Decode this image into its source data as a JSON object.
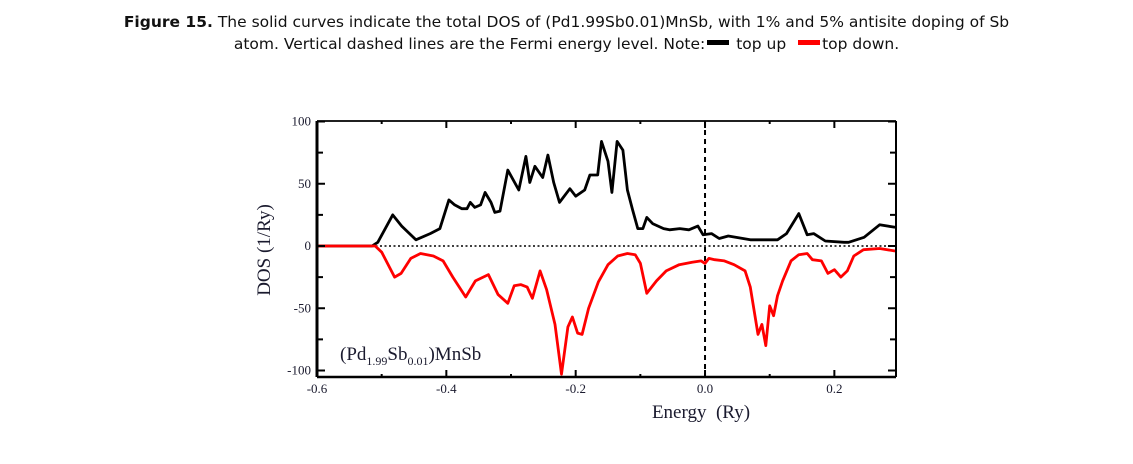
{
  "caption": {
    "label": "Figure 15.",
    "line1_text": "The solid curves indicate the total DOS of (Pd1.99Sb0.01)MnSb,  with 1% and  5% antisite doping of Sb",
    "line2_text": "atom. Vertical dashed lines are the Fermi energy level. Note:",
    "legend_up": "top up",
    "legend_down": "top down."
  },
  "colors": {
    "spin_up": "#000000",
    "spin_down": "#ff0000",
    "axis": "#000000"
  },
  "chart_data": {
    "type": "line",
    "title": "",
    "annotation": {
      "pre": "(Pd",
      "sub1": "1.99",
      "mid": "Sb",
      "sub2": "0.01",
      "post": ")MnSb"
    },
    "xlabel": "Energy  (Ry)",
    "ylabel": "DOS (1/Ry)",
    "xlim": [
      -0.6,
      0.295
    ],
    "ylim": [
      -105,
      100
    ],
    "xticks": [
      -0.6,
      -0.4,
      -0.2,
      0.0,
      0.2
    ],
    "xtick_labels": [
      "-0.6",
      "-0.4",
      "-0.2",
      "0.0",
      "0.2"
    ],
    "xminor": [
      -0.5,
      -0.3,
      -0.1,
      0.1
    ],
    "yticks": [
      100,
      50,
      0,
      -50,
      -100
    ],
    "ytick_labels": [
      "100",
      "50",
      "0",
      "-50",
      "-100"
    ],
    "yminor": [
      75,
      25,
      -25,
      -75
    ],
    "fermi_level": 0.0,
    "zero_line": 0,
    "grid": false,
    "series": [
      {
        "name": "top up",
        "x": [
          -0.6,
          -0.515,
          -0.506,
          -0.483,
          -0.469,
          -0.447,
          -0.425,
          -0.41,
          -0.396,
          -0.387,
          -0.376,
          -0.368,
          -0.363,
          -0.356,
          -0.347,
          -0.34,
          -0.331,
          -0.325,
          -0.317,
          -0.305,
          -0.288,
          -0.277,
          -0.271,
          -0.263,
          -0.251,
          -0.243,
          -0.234,
          -0.225,
          -0.209,
          -0.2,
          -0.186,
          -0.178,
          -0.166,
          -0.16,
          -0.15,
          -0.144,
          -0.136,
          -0.127,
          -0.12,
          -0.112,
          -0.104,
          -0.096,
          -0.09,
          -0.081,
          -0.064,
          -0.055,
          -0.039,
          -0.025,
          -0.011,
          -0.003,
          0.01,
          0.022,
          0.036,
          0.07,
          0.112,
          0.126,
          0.145,
          0.158,
          0.168,
          0.186,
          0.215,
          0.222,
          0.246,
          0.27,
          0.294
        ],
        "y": [
          0,
          0,
          3,
          25,
          16,
          5,
          10,
          14,
          37,
          33,
          30,
          30,
          35,
          31,
          33,
          43,
          35,
          27,
          28,
          61,
          45,
          72,
          51,
          64,
          55,
          73,
          51,
          35,
          46,
          40,
          45,
          57,
          57,
          84,
          68,
          43,
          84,
          77,
          45,
          29,
          14,
          14,
          23,
          18,
          14,
          13,
          14,
          13,
          16,
          9,
          10,
          6,
          8,
          5,
          5,
          10,
          26,
          9,
          10,
          4,
          3,
          3,
          7,
          17,
          15
        ]
      },
      {
        "name": "top down",
        "x": [
          -0.6,
          -0.51,
          -0.5,
          -0.48,
          -0.47,
          -0.455,
          -0.44,
          -0.42,
          -0.405,
          -0.39,
          -0.37,
          -0.355,
          -0.335,
          -0.32,
          -0.305,
          -0.295,
          -0.285,
          -0.275,
          -0.267,
          -0.255,
          -0.245,
          -0.232,
          -0.222,
          -0.212,
          -0.205,
          -0.197,
          -0.19,
          -0.18,
          -0.165,
          -0.15,
          -0.135,
          -0.12,
          -0.108,
          -0.1,
          -0.09,
          -0.075,
          -0.06,
          -0.04,
          -0.02,
          -0.006,
          0.0,
          0.006,
          0.015,
          0.03,
          0.045,
          0.062,
          0.07,
          0.082,
          0.088,
          0.094,
          0.1,
          0.106,
          0.112,
          0.12,
          0.133,
          0.145,
          0.158,
          0.166,
          0.18,
          0.19,
          0.2,
          0.21,
          0.22,
          0.23,
          0.245,
          0.27,
          0.294
        ],
        "y": [
          0,
          0,
          -5,
          -25,
          -22,
          -10,
          -6,
          -8,
          -12,
          -25,
          -41,
          -28,
          -23,
          -39,
          -46,
          -32,
          -31,
          -33,
          -42,
          -20,
          -35,
          -63,
          -103,
          -65,
          -57,
          -70,
          -71,
          -50,
          -29,
          -15,
          -8,
          -6,
          -7,
          -14,
          -38,
          -28,
          -20,
          -15,
          -13,
          -12,
          -14,
          -10,
          -11,
          -12,
          -15,
          -20,
          -33,
          -71,
          -63,
          -80,
          -48,
          -56,
          -40,
          -28,
          -12,
          -7,
          -6,
          -11,
          -12,
          -22,
          -19,
          -25,
          -20,
          -8,
          -3,
          -2,
          -4
        ]
      }
    ]
  }
}
